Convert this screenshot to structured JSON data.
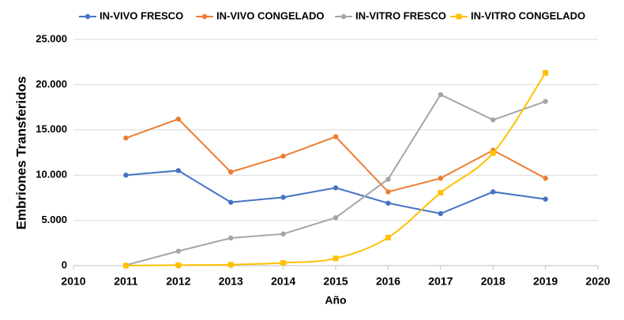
{
  "chart_data": {
    "type": "line",
    "x_label": "Año",
    "y_label": "Embriones Transferidos",
    "x": [
      2011,
      2012,
      2013,
      2014,
      2015,
      2016,
      2017,
      2018,
      2019
    ],
    "xlim": [
      2010,
      2020
    ],
    "xticks": [
      2010,
      2011,
      2012,
      2013,
      2014,
      2015,
      2016,
      2017,
      2018,
      2019,
      2020
    ],
    "ylim": [
      0,
      25000
    ],
    "yticks": [
      0,
      {
        "value": 5000,
        "label": "5.000"
      },
      {
        "value": 10000,
        "label": "10.000"
      },
      {
        "value": 15000,
        "label": "15.000"
      },
      {
        "value": 20000,
        "label": "20.000"
      },
      {
        "value": 25000,
        "label": "25.000"
      }
    ],
    "grid": true,
    "legend": "top",
    "series": [
      {
        "name": "IN-VIVO FRESCO",
        "color": "#4472c4",
        "marker": "circle",
        "smooth": false,
        "values": [
          10000,
          10500,
          7000,
          7550,
          8600,
          6900,
          5750,
          8150,
          7350
        ]
      },
      {
        "name": "IN-VIVO CONGELADO",
        "color": "#ed7d31",
        "marker": "circle",
        "smooth": false,
        "values": [
          14100,
          16200,
          10350,
          12100,
          14250,
          8150,
          9650,
          12750,
          9650
        ]
      },
      {
        "name": "IN-VITRO FRESCO",
        "color": "#a5a5a5",
        "marker": "circle",
        "smooth": false,
        "values": [
          50,
          1600,
          3050,
          3500,
          5300,
          9550,
          18900,
          16100,
          18150
        ]
      },
      {
        "name": "IN-VITRO CONGELADO",
        "color": "#ffc000",
        "marker": "square",
        "smooth": true,
        "values": [
          0,
          50,
          100,
          300,
          800,
          3100,
          8050,
          12450,
          21300
        ]
      }
    ]
  }
}
